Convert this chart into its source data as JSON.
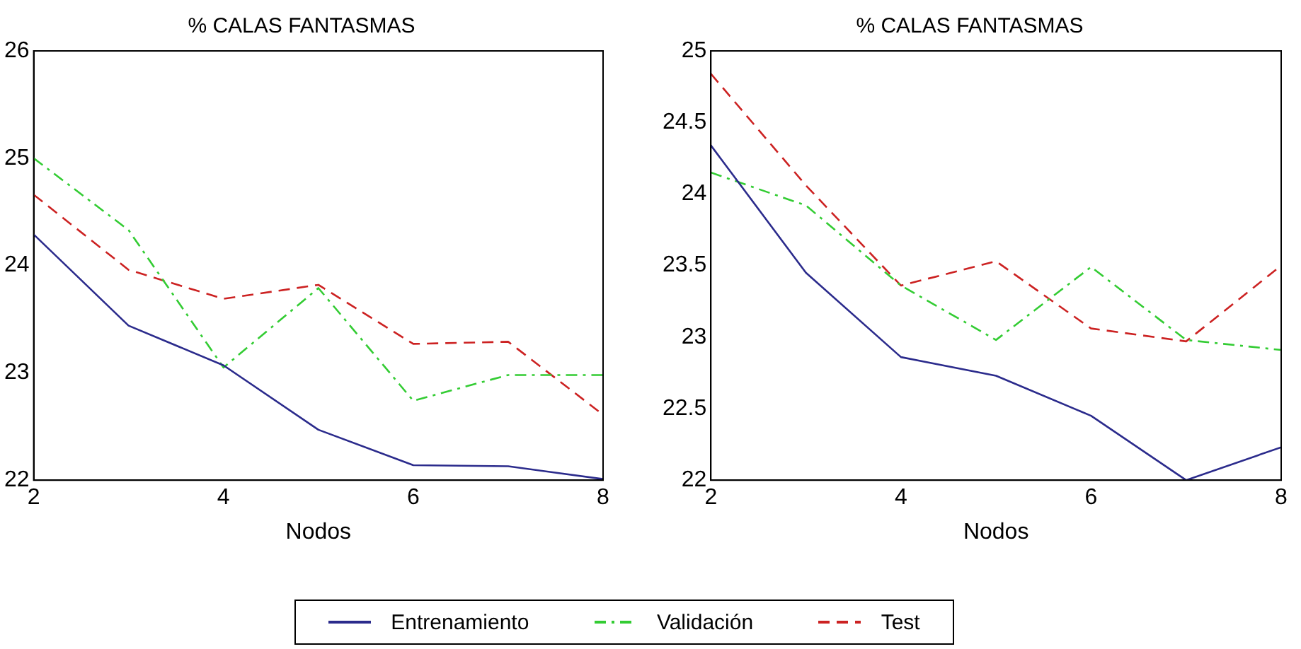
{
  "chart_data": [
    {
      "type": "line",
      "title": "% CALAS FANTASMAS",
      "xlabel": "Nodos",
      "x": [
        2,
        3,
        4,
        5,
        6,
        7,
        8
      ],
      "xlim": [
        2,
        8
      ],
      "xticks": [
        2,
        4,
        6,
        8
      ],
      "ylim": [
        22,
        26
      ],
      "yticks": [
        22,
        23,
        24,
        25,
        26
      ],
      "legend": "bottom",
      "marker": "none",
      "series": [
        {
          "name": "Entrenamiento",
          "color": "#2b2b8c",
          "line_style": "solid",
          "values": [
            24.29,
            23.44,
            23.07,
            22.47,
            22.14,
            22.13,
            22.01
          ]
        },
        {
          "name": "Validación",
          "color": "#33cc33",
          "line_style": "dashdot",
          "values": [
            25.0,
            24.33,
            23.05,
            23.79,
            22.74,
            22.98,
            22.98
          ]
        },
        {
          "name": "Test",
          "color": "#cc2222",
          "line_style": "dashed",
          "values": [
            24.66,
            23.96,
            23.69,
            23.82,
            23.27,
            23.29,
            22.61
          ]
        }
      ]
    },
    {
      "type": "line",
      "title": "% CALAS FANTASMAS",
      "xlabel": "Nodos",
      "x": [
        2,
        3,
        4,
        5,
        6,
        7,
        8
      ],
      "xlim": [
        2,
        8
      ],
      "xticks": [
        2,
        4,
        6,
        8
      ],
      "ylim": [
        22,
        25
      ],
      "yticks": [
        22,
        22.5,
        23,
        23.5,
        24,
        24.5,
        25
      ],
      "marker": "none",
      "series": [
        {
          "color": "#2b2b8c",
          "line_style": "solid",
          "values": [
            24.34,
            23.45,
            22.86,
            22.73,
            22.45,
            22.0,
            22.23
          ]
        },
        {
          "color": "#33cc33",
          "line_style": "dashdot",
          "values": [
            24.15,
            23.92,
            23.36,
            22.98,
            23.49,
            22.98,
            22.91
          ]
        },
        {
          "color": "#cc2222",
          "line_style": "dashed",
          "values": [
            24.84,
            24.06,
            23.36,
            23.53,
            23.06,
            22.97,
            23.5
          ]
        }
      ]
    }
  ]
}
